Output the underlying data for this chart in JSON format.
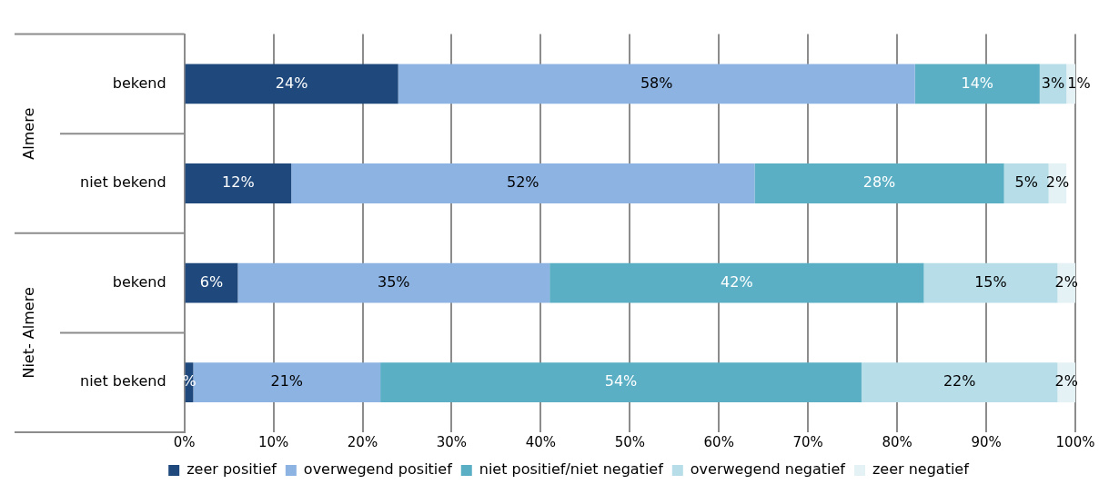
{
  "chart_data": {
    "type": "bar",
    "orientation": "horizontal",
    "stacked": true,
    "categories": [
      "bekend",
      "niet bekend",
      "bekend",
      "niet bekend"
    ],
    "annotations": [
      "Almere",
      "Niet- Almere"
    ],
    "series": [
      {
        "name": "zeer positief",
        "color": "#1f497d",
        "values": [
          24,
          12,
          6,
          1
        ],
        "value_labels": [
          "24%",
          "12%",
          "6%",
          "%"
        ]
      },
      {
        "name": "overwegend positief",
        "color": "#8db3e2",
        "values": [
          58,
          52,
          35,
          21
        ],
        "value_labels": [
          "58%",
          "52%",
          "35%",
          "21%"
        ]
      },
      {
        "name": "niet positief/niet negatief",
        "color": "#5bafc4",
        "values": [
          14,
          28,
          42,
          54
        ],
        "value_labels": [
          "14%",
          "28%",
          "42%",
          "54%"
        ]
      },
      {
        "name": "overwegend negatief",
        "color": "#b7dde8",
        "values": [
          3,
          5,
          15,
          22
        ],
        "value_labels": [
          "3%",
          "5%",
          "15%",
          "22%"
        ]
      },
      {
        "name": "zeer negatief",
        "color": "#e4f1f5",
        "values": [
          1,
          2,
          2,
          2
        ],
        "value_labels": [
          "1%",
          "2%",
          "2%",
          "2%"
        ]
      }
    ],
    "xlim": [
      0,
      100
    ],
    "xticks": [
      {
        "value": 0,
        "label": "0%"
      },
      {
        "value": 10,
        "label": "10%"
      },
      {
        "value": 20,
        "label": "20%"
      },
      {
        "value": 30,
        "label": "30%"
      },
      {
        "value": 40,
        "label": "40%"
      },
      {
        "value": 50,
        "label": "50%"
      },
      {
        "value": 60,
        "label": "60%"
      },
      {
        "value": 70,
        "label": "70%"
      },
      {
        "value": 80,
        "label": "80%"
      },
      {
        "value": 90,
        "label": "90%"
      },
      {
        "value": 100,
        "label": "100%"
      }
    ],
    "grid": "x",
    "legend": "bottom",
    "data_labels": true
  }
}
